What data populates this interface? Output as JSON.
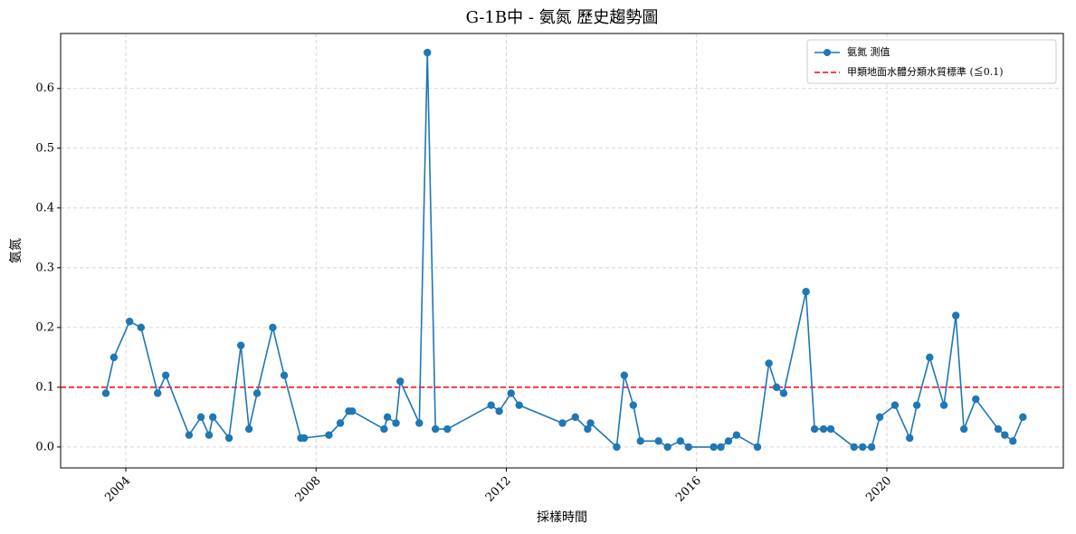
{
  "chart_data": {
    "type": "line",
    "title": "G-1B中 - 氨氮 歷史趨勢圖",
    "xlabel": "採樣時間",
    "ylabel": "氨氮",
    "x": [
      2003.58,
      2003.75,
      2004.08,
      2004.32,
      2004.67,
      2004.84,
      2005.33,
      2005.58,
      2005.75,
      2005.83,
      2006.17,
      2006.42,
      2006.59,
      2006.76,
      2007.09,
      2007.33,
      2007.68,
      2007.75,
      2008.27,
      2008.51,
      2008.69,
      2008.76,
      2009.43,
      2009.5,
      2009.68,
      2009.77,
      2010.17,
      2010.34,
      2010.51,
      2010.76,
      2011.68,
      2011.85,
      2012.1,
      2012.27,
      2013.18,
      2013.45,
      2013.71,
      2013.77,
      2014.32,
      2014.48,
      2014.67,
      2014.82,
      2015.2,
      2015.39,
      2015.66,
      2015.83,
      2016.36,
      2016.51,
      2016.67,
      2016.84,
      2017.28,
      2017.52,
      2017.68,
      2017.83,
      2018.3,
      2018.48,
      2018.67,
      2018.82,
      2019.31,
      2019.49,
      2019.68,
      2019.85,
      2020.17,
      2020.48,
      2020.63,
      2020.9,
      2021.2,
      2021.45,
      2021.62,
      2021.87,
      2022.34,
      2022.48,
      2022.65,
      2022.86
    ],
    "series": [
      {
        "name": "氨氮 測值",
        "color": "#1f77b4",
        "values": [
          0.09,
          0.15,
          0.21,
          0.2,
          0.09,
          0.12,
          0.02,
          0.05,
          0.02,
          0.05,
          0.015,
          0.17,
          0.03,
          0.09,
          0.2,
          0.12,
          0.015,
          0.015,
          0.02,
          0.04,
          0.06,
          0.06,
          0.03,
          0.05,
          0.04,
          0.11,
          0.04,
          0.66,
          0.03,
          0.03,
          0.07,
          0.06,
          0.09,
          0.07,
          0.04,
          0.05,
          0.03,
          0.04,
          0,
          0.12,
          0.07,
          0.01,
          0.01,
          0,
          0.01,
          0,
          0,
          0,
          0.01,
          0.02,
          0,
          0.14,
          0.1,
          0.09,
          0.26,
          0.03,
          0.03,
          0.03,
          0,
          0,
          0,
          0.05,
          0.07,
          0.015,
          0.07,
          0.15,
          0.07,
          0.22,
          0.03,
          0.08,
          0.03,
          0.02,
          0.01,
          0.05
        ]
      }
    ],
    "threshold": {
      "name": "甲類地面水體分類水質標準 (≦0.1)",
      "value": 0.1,
      "color": "#ff0000"
    },
    "xlim": [
      2002.63,
      2023.71
    ],
    "xticks": [
      2004,
      2008,
      2012,
      2016,
      2020
    ],
    "ylim": [
      -0.035,
      0.692
    ],
    "yticks": [
      {
        "value": 0,
        "label": "0.0"
      },
      0.1,
      0.2,
      0.3,
      0.4,
      0.5,
      0.6
    ],
    "grid": true,
    "legend": "upper right"
  }
}
